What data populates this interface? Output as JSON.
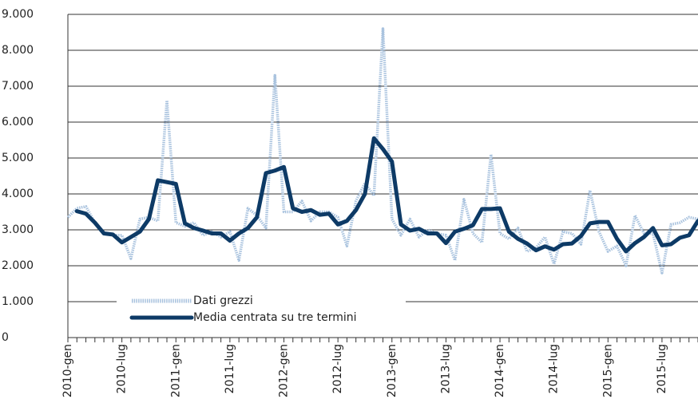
{
  "chart_data": {
    "type": "line",
    "categories": [
      "2010-gen",
      null,
      null,
      null,
      null,
      null,
      "2010-lug",
      null,
      null,
      null,
      null,
      null,
      "2011-gen",
      null,
      null,
      null,
      null,
      null,
      "2011-lug",
      null,
      null,
      null,
      null,
      null,
      "2012-gen",
      null,
      null,
      null,
      null,
      null,
      "2012-lug",
      null,
      null,
      null,
      null,
      null,
      "2013-gen",
      null,
      null,
      null,
      null,
      null,
      "2013-lug",
      null,
      null,
      null,
      null,
      null,
      "2014-gen",
      null,
      null,
      null,
      null,
      null,
      "2014-lug",
      null,
      null,
      null,
      null,
      null,
      "2015-gen",
      null,
      null,
      null,
      null,
      null,
      "2015-lug",
      null,
      null,
      null,
      null
    ],
    "series": [
      {
        "name": "Dati grezzi",
        "color": "#a8c2de",
        "values": [
          3350,
          3600,
          3650,
          3200,
          2900,
          2850,
          2850,
          2200,
          3300,
          3350,
          3250,
          6600,
          3200,
          3100,
          3200,
          2850,
          2950,
          2800,
          2950,
          2150,
          3600,
          3400,
          3050,
          7300,
          3500,
          3500,
          3800,
          3250,
          3500,
          3500,
          3350,
          2550,
          3800,
          4300,
          3950,
          8600,
          3300,
          2850,
          3300,
          2800,
          3000,
          2900,
          2850,
          2150,
          3850,
          2900,
          2650,
          5100,
          2900,
          2750,
          3050,
          2400,
          2500,
          2800,
          2050,
          2950,
          2900,
          2600,
          4100,
          2950,
          2400,
          2550,
          2000,
          3400,
          2900,
          2900,
          1800,
          3150,
          3200,
          3350,
          3300
        ]
      },
      {
        "name": "Media centrata su tre termini",
        "color": "#0d3a66",
        "values": [
          null,
          3520,
          3450,
          3200,
          2900,
          2870,
          2650,
          2800,
          2950,
          3300,
          4380,
          4330,
          4280,
          3180,
          3050,
          2980,
          2900,
          2900,
          2700,
          2900,
          3050,
          3350,
          4580,
          4650,
          4750,
          3600,
          3500,
          3550,
          3420,
          3450,
          3150,
          3250,
          3550,
          4000,
          5550,
          5250,
          4900,
          3150,
          2980,
          3030,
          2900,
          2900,
          2630,
          2950,
          3030,
          3130,
          3580,
          3580,
          3600,
          2950,
          2750,
          2620,
          2430,
          2540,
          2450,
          2600,
          2620,
          2830,
          3180,
          3220,
          3220,
          2750,
          2400,
          2630,
          2800,
          3050,
          2570,
          2600,
          2780,
          2850,
          3250
        ]
      }
    ],
    "ylim": [
      0,
      9000
    ],
    "yticks": [
      0,
      {
        "value": 1000,
        "label": "1.000"
      },
      {
        "value": 2000,
        "label": "2.000"
      },
      {
        "value": 3000,
        "label": "3.000"
      },
      {
        "value": 4000,
        "label": "4.000"
      },
      {
        "value": 5000,
        "label": "5.000"
      },
      {
        "value": 6000,
        "label": "6.000"
      },
      {
        "value": 7000,
        "label": "7.000"
      },
      {
        "value": 8000,
        "label": "8.000"
      },
      {
        "value": 9000,
        "label": "9.000"
      }
    ],
    "grid": true
  }
}
